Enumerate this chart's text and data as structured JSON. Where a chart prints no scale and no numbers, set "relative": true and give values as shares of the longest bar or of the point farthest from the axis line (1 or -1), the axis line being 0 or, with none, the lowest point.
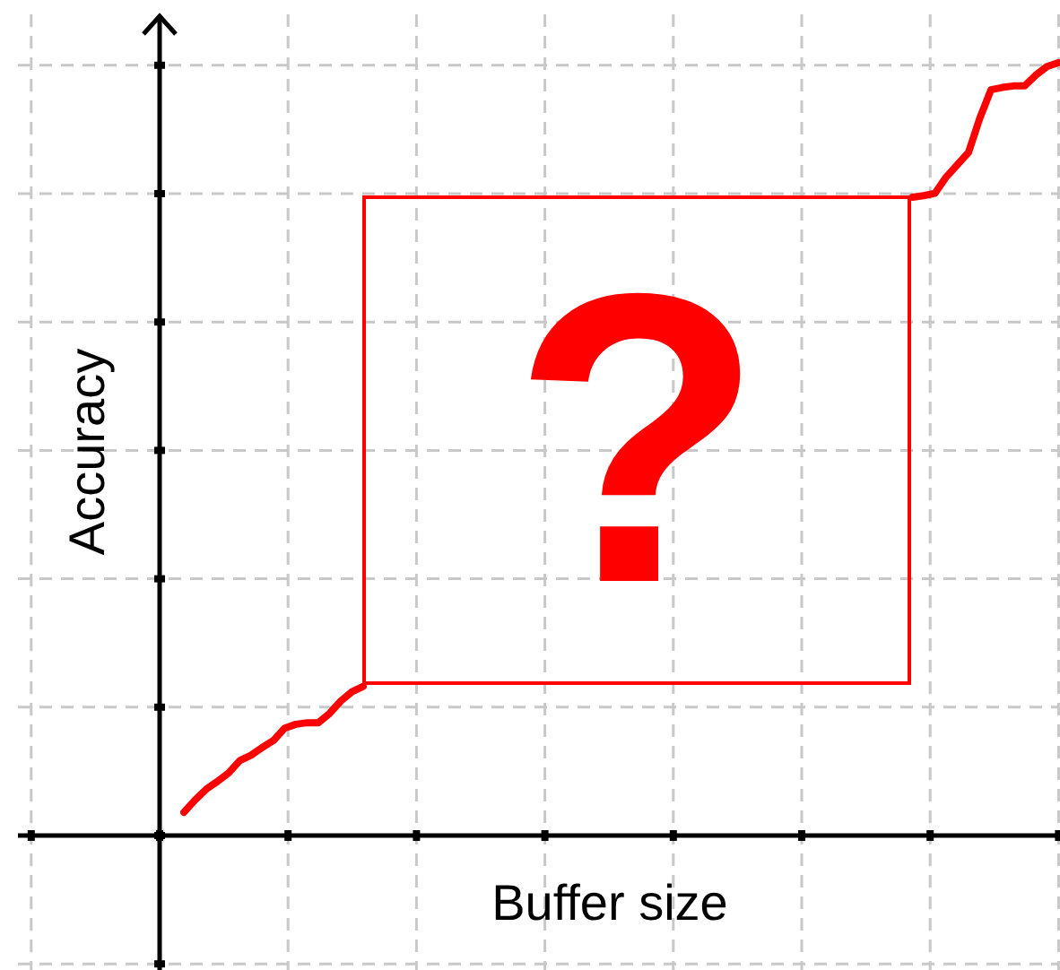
{
  "chart_data": {
    "type": "line",
    "relative": true,
    "xlabel": "Buffer size",
    "ylabel": "Accuracy",
    "grid": true,
    "marker": "none",
    "line_style": "solid",
    "annotations": [
      "?"
    ],
    "categories": [
      null,
      null,
      null,
      null,
      null,
      null,
      null,
      null,
      null,
      null,
      null,
      null,
      null,
      null,
      null,
      null,
      null,
      null,
      null,
      null,
      null,
      null,
      null,
      null,
      null,
      null,
      null,
      null,
      null,
      null,
      null,
      null,
      null,
      null,
      null,
      null,
      null,
      null,
      null,
      null,
      null,
      null,
      null,
      null,
      null,
      null,
      null,
      null,
      null,
      null,
      null,
      null,
      null,
      null,
      null,
      null,
      null,
      null,
      null,
      null,
      null,
      null,
      null,
      null,
      null,
      null,
      null,
      null,
      null,
      null,
      null,
      null,
      null,
      null,
      null,
      null,
      null,
      null,
      null
    ],
    "series": [
      {
        "color": "#ff0000",
        "values": [
          0.03,
          0.046,
          0.06,
          0.07,
          0.081,
          0.097,
          0.104,
          0.114,
          0.123,
          0.139,
          0.144,
          0.146,
          0.146,
          0.158,
          0.174,
          0.186,
          0.193,
          null,
          null,
          null,
          null,
          null,
          null,
          null,
          null,
          null,
          null,
          null,
          null,
          null,
          null,
          null,
          null,
          null,
          null,
          null,
          null,
          null,
          null,
          null,
          null,
          null,
          null,
          null,
          null,
          null,
          null,
          null,
          null,
          null,
          null,
          null,
          null,
          null,
          null,
          null,
          null,
          null,
          null,
          null,
          null,
          null,
          null,
          null,
          null,
          null,
          null,
          null,
          null,
          null,
          null,
          null,
          null,
          null,
          null,
          null,
          null,
          null,
          null
        ]
      },
      {
        "color": "#ff0000",
        "values": [
          null,
          null,
          null,
          null,
          null,
          null,
          null,
          null,
          null,
          null,
          null,
          null,
          null,
          null,
          null,
          null,
          null,
          null,
          null,
          null,
          null,
          null,
          null,
          null,
          null,
          null,
          null,
          null,
          null,
          null,
          null,
          null,
          null,
          null,
          null,
          null,
          null,
          null,
          null,
          null,
          null,
          null,
          null,
          null,
          null,
          null,
          null,
          null,
          null,
          null,
          null,
          null,
          null,
          null,
          null,
          null,
          null,
          null,
          null,
          null,
          null,
          null,
          null,
          null,
          null,
          0.826,
          0.828,
          0.831,
          0.852,
          0.868,
          0.884,
          0.928,
          0.965,
          0.968,
          0.97,
          0.97,
          0.984,
          0.995,
          1
        ]
      }
    ]
  }
}
